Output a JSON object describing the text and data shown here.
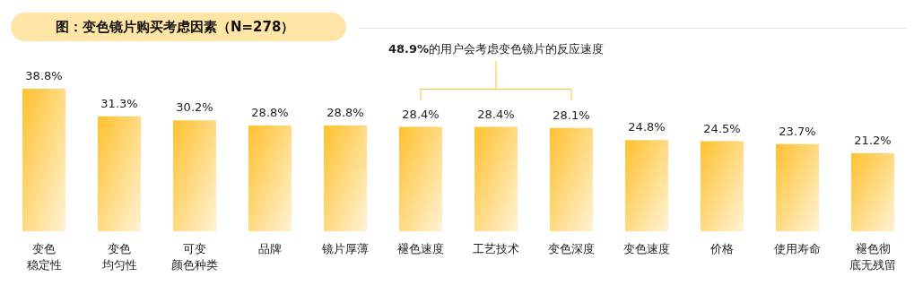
{
  "chart_data": {
    "type": "bar",
    "title": "图：变色镜片购买考虑因素（N=278）",
    "categories": [
      "变色稳定性",
      "变色均匀性",
      "可变颜色种类",
      "品牌",
      "镜片厚薄",
      "褪色速度",
      "工艺技术",
      "变色深度",
      "变色速度",
      "价格",
      "使用寿命",
      "褪色彻底无残留"
    ],
    "values": [
      38.8,
      31.3,
      30.2,
      28.8,
      28.8,
      28.4,
      28.4,
      28.1,
      24.8,
      24.5,
      23.7,
      21.2
    ],
    "value_labels": [
      "38.8%",
      "31.3%",
      "30.2%",
      "28.8%",
      "28.8%",
      "28.4%",
      "28.4%",
      "28.1%",
      "24.8%",
      "24.5%",
      "23.7%",
      "21.2%"
    ],
    "color": "#ffc12e",
    "annotations": [
      "48.9%的用户会考虑变色镜片的反应速度"
    ]
  }
}
